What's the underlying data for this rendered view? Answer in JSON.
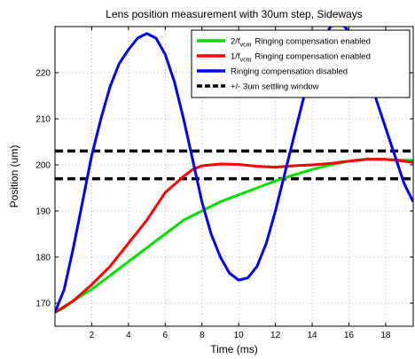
{
  "chart_data": {
    "type": "line",
    "title": "Lens position measurement with 30um step, Sideways",
    "xlabel": "Time (ms)",
    "ylabel": "Position (um)",
    "xlim": [
      0,
      19.5
    ],
    "ylim": [
      165,
      230
    ],
    "xticks": [
      2,
      4,
      6,
      8,
      10,
      12,
      14,
      16,
      18
    ],
    "yticks": [
      170,
      180,
      190,
      200,
      210,
      220
    ],
    "grid": true,
    "legend_position": "top-right",
    "series": [
      {
        "name": "Ringing compensation enabled",
        "legend_prefix": "2/f",
        "legend_subscript": "vcm",
        "color": "#00e000",
        "x": [
          0,
          0.5,
          1,
          2,
          3,
          4,
          5,
          6,
          7,
          8,
          9,
          10,
          11,
          12,
          13,
          14,
          15,
          16,
          17,
          18,
          19,
          19.5
        ],
        "y": [
          168,
          169,
          170.5,
          173,
          176,
          179,
          182,
          185,
          188,
          190,
          192,
          193.5,
          195,
          196.5,
          197.8,
          199,
          200,
          200.8,
          201.3,
          201.2,
          201,
          201
        ]
      },
      {
        "name": "Ringing compensation enabled",
        "legend_prefix": "1/f",
        "legend_subscript": "vcm",
        "color": "#ff0000",
        "x": [
          0,
          1,
          2,
          3,
          4,
          5,
          6,
          7,
          7.5,
          8,
          9,
          10,
          11,
          12,
          13,
          14,
          15,
          16,
          17,
          18,
          19,
          19.5
        ],
        "y": [
          168,
          170.5,
          174,
          178,
          183,
          188,
          194,
          197.5,
          199,
          199.8,
          200.2,
          200.1,
          199.7,
          199.5,
          199.8,
          200,
          200.3,
          200.8,
          201.2,
          201.2,
          200.8,
          200.5
        ]
      },
      {
        "name": "Ringing compensation disabled",
        "legend_prefix": "",
        "legend_subscript": "",
        "color": "#0000ff",
        "x": [
          0,
          0.5,
          1,
          1.5,
          2,
          2.5,
          3,
          3.5,
          4,
          4.5,
          5,
          5.5,
          6,
          6.5,
          7,
          7.5,
          8,
          8.5,
          9,
          9.5,
          10,
          10.5,
          11,
          11.5,
          12,
          12.5,
          13,
          13.5,
          14,
          14.5,
          15,
          15.5,
          16,
          16.5,
          17,
          17.5,
          18,
          18.5,
          19,
          19.5
        ],
        "y": [
          168,
          173,
          182,
          192,
          202,
          210,
          217,
          222,
          225,
          227.5,
          228.5,
          227.5,
          224,
          218,
          210,
          201,
          192,
          185,
          180,
          176.5,
          175,
          175.5,
          178,
          183,
          190,
          198,
          206,
          214,
          221,
          226.5,
          230,
          231,
          229,
          225,
          220,
          214,
          208,
          202,
          196,
          192
        ]
      },
      {
        "name": "+/- 3um settling window",
        "legend_prefix": "",
        "legend_subscript": "",
        "color": "#000000",
        "dashed": true,
        "lines_y": [
          197,
          203
        ]
      }
    ]
  }
}
